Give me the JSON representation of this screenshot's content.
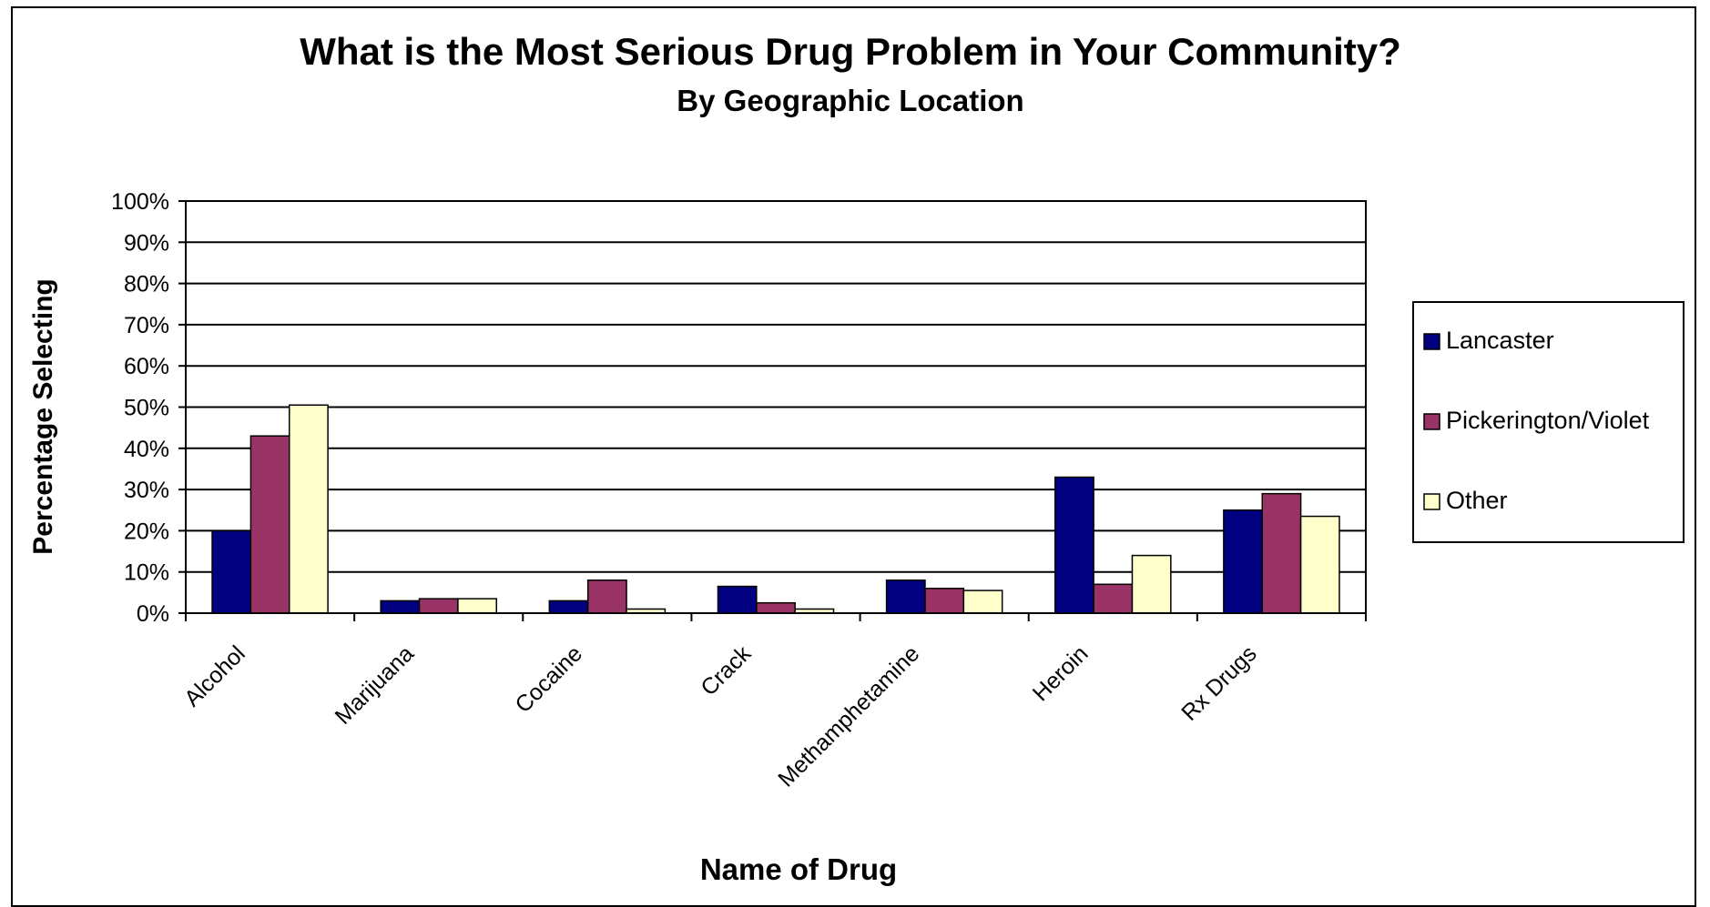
{
  "chart_data": {
    "type": "bar",
    "title": "What is the Most Serious Drug Problem in Your Community?",
    "subtitle": "By Geographic Location",
    "xlabel": "Name of Drug",
    "ylabel": "Percentage Selecting",
    "categories": [
      "Alcohol",
      "Marijuana",
      "Cocaine",
      "Crack",
      "Methamphetamine",
      "Heroin",
      "Rx Drugs"
    ],
    "series": [
      {
        "name": "Lancaster",
        "color": "#000080",
        "values": [
          20,
          3,
          3,
          6.5,
          8,
          33,
          25
        ]
      },
      {
        "name": "Pickerington/Violet",
        "color": "#993366",
        "values": [
          43,
          3.5,
          8,
          2.5,
          6,
          7,
          29
        ]
      },
      {
        "name": "Other",
        "color": "#FFFFCC",
        "values": [
          50.5,
          3.5,
          1,
          1,
          5.5,
          14,
          23.5
        ]
      }
    ],
    "ylim": [
      0,
      100
    ],
    "yticks": [
      "0%",
      "10%",
      "20%",
      "30%",
      "40%",
      "50%",
      "60%",
      "70%",
      "80%",
      "90%",
      "100%"
    ],
    "grid": true,
    "legend_position": "right"
  }
}
